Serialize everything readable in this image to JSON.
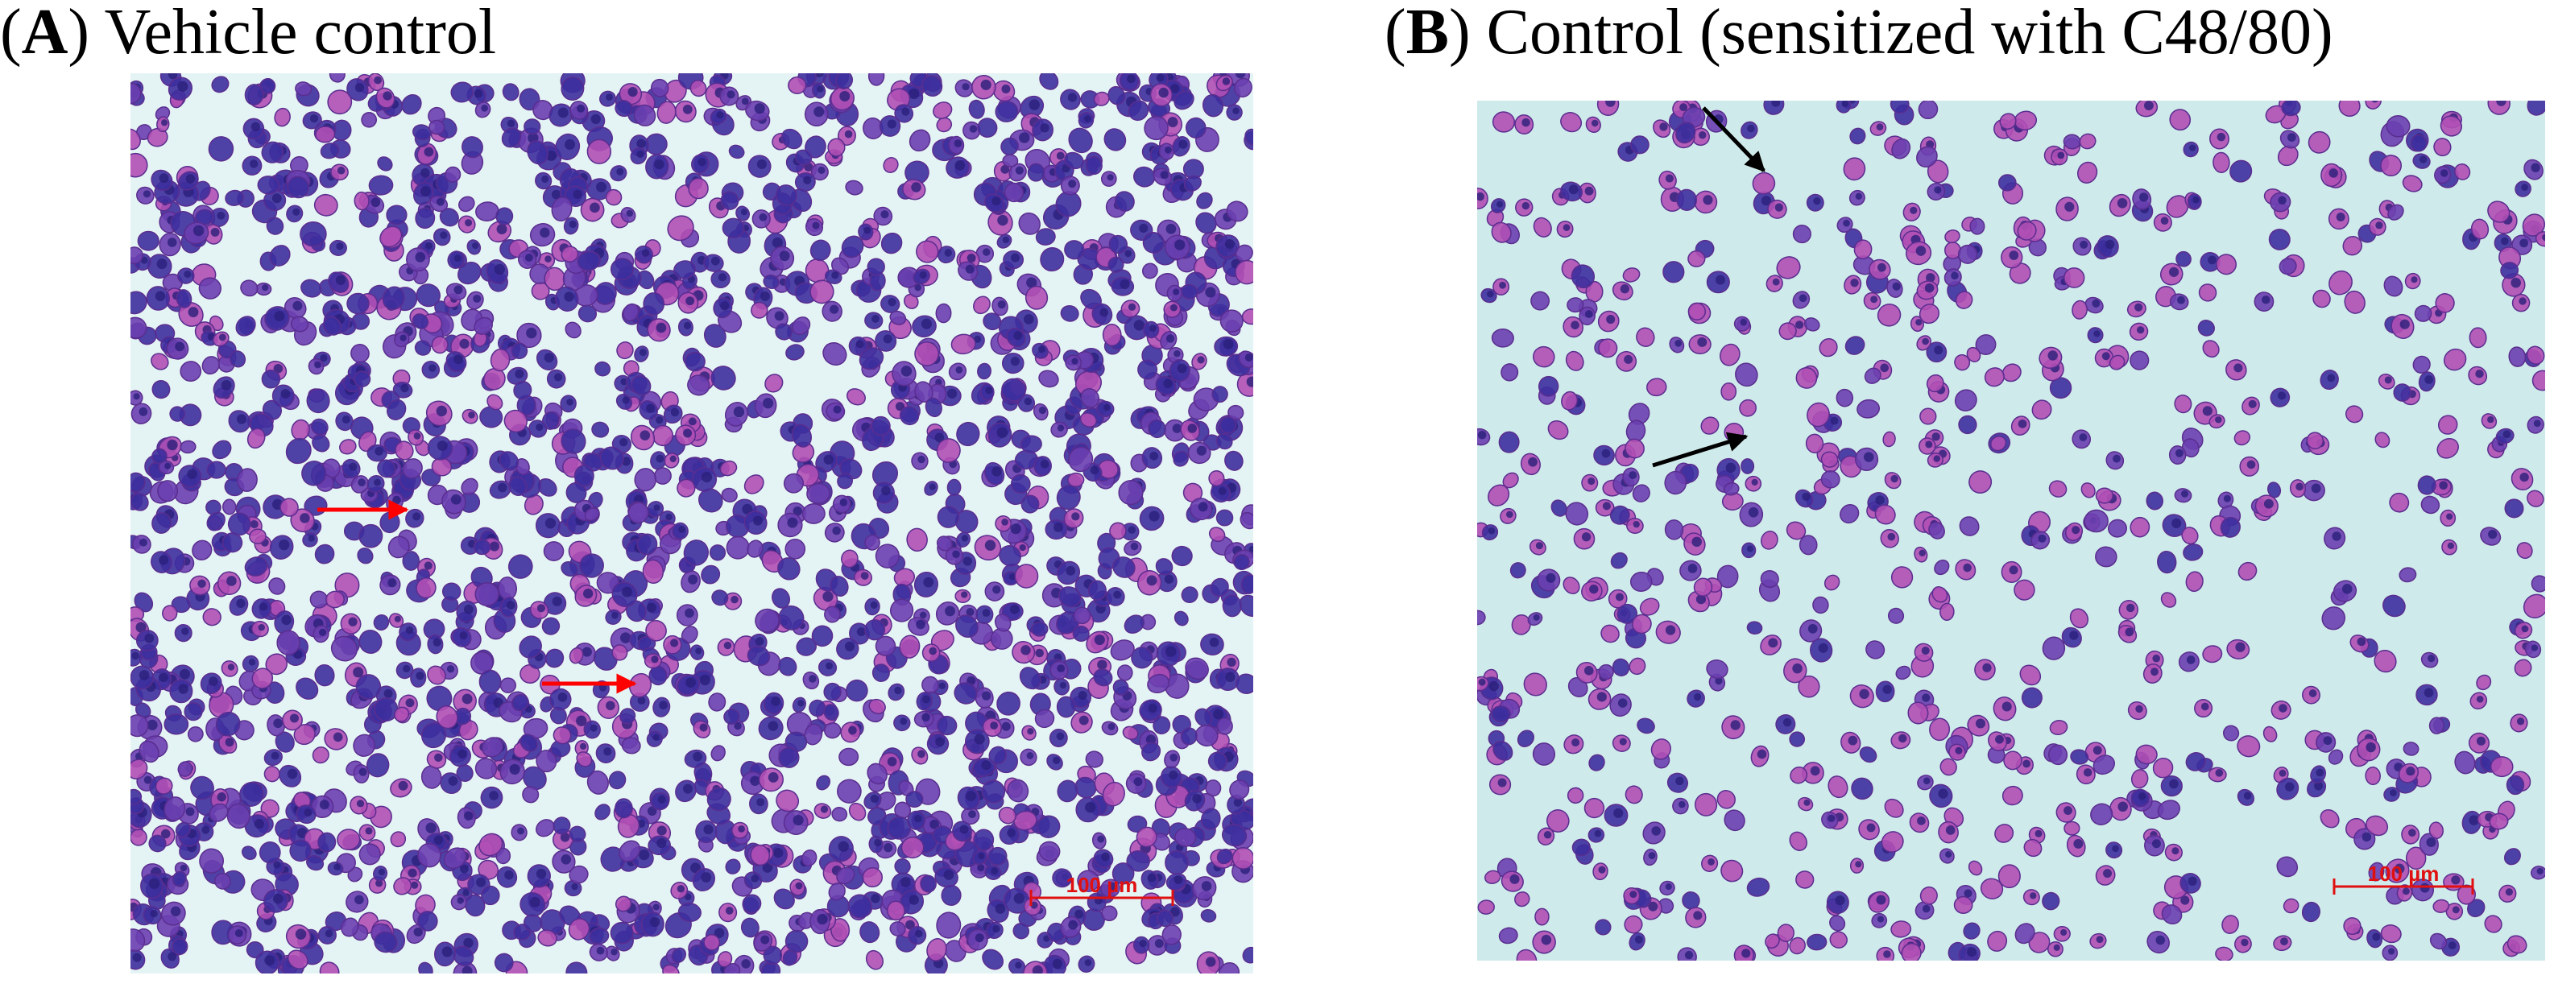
{
  "panels": [
    {
      "heading": [
        "(",
        "A",
        ") Vehicle control"
      ],
      "scale_bar": "100 µm"
    },
    {
      "heading": [
        "(",
        "B",
        ") Control (sensitized with C48/80)"
      ],
      "scale_bar": "100 µm"
    }
  ]
}
